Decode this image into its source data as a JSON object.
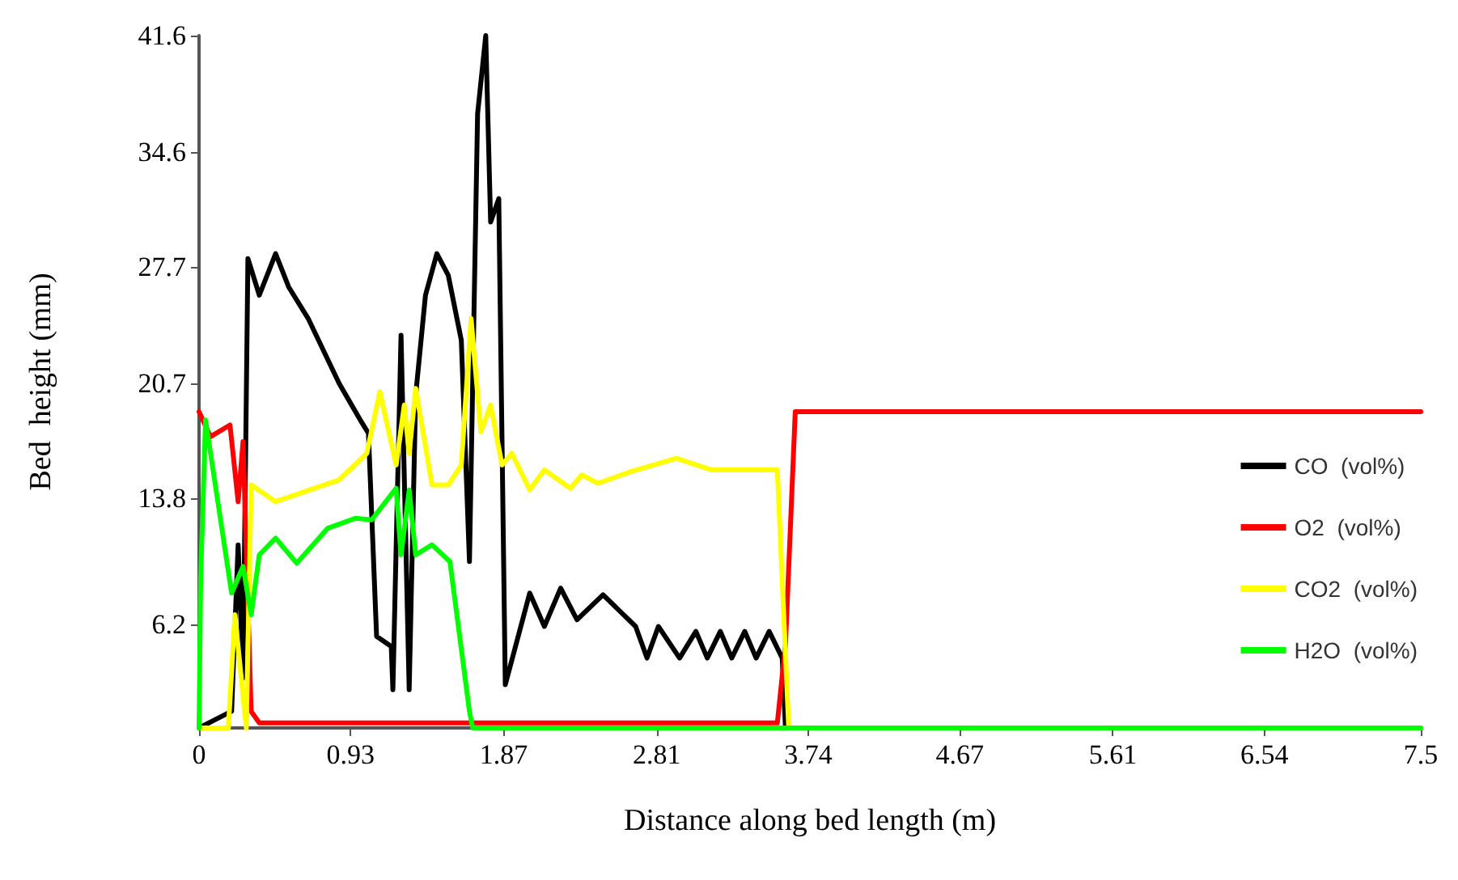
{
  "chart_data": {
    "type": "line",
    "xlabel": "Distance along bed length (m)",
    "ylabel": "Bed  height (mm)",
    "xlim": [
      0,
      7.5
    ],
    "xticks": [
      0,
      0.93,
      1.87,
      2.81,
      3.74,
      4.67,
      5.61,
      6.54,
      7.5
    ],
    "ylim": [
      0,
      41.6
    ],
    "yticks": [
      6.2,
      13.8,
      20.7,
      27.7,
      34.6,
      41.6
    ],
    "grid": false,
    "legend": "right",
    "marker": "none",
    "line_style": "solid",
    "series": [
      {
        "name": "CO  (vol%)",
        "color": "#000000",
        "x": [
          0,
          0.2,
          0.24,
          0.27,
          0.3,
          0.37,
          0.47,
          0.55,
          0.67,
          0.86,
          0.99,
          1.04,
          1.09,
          1.18,
          1.19,
          1.24,
          1.29,
          1.33,
          1.39,
          1.46,
          1.53,
          1.61,
          1.66,
          1.71,
          1.76,
          1.79,
          1.84,
          1.88,
          2.03,
          2.12,
          2.22,
          2.32,
          2.48,
          2.68,
          2.75,
          2.82,
          2.95,
          3.05,
          3.12,
          3.2,
          3.27,
          3.35,
          3.42,
          3.5,
          3.58,
          3.6
        ],
        "values": [
          0,
          1,
          11,
          3,
          28.2,
          26,
          28.5,
          26.5,
          24.6,
          20.7,
          18.5,
          17.7,
          5.5,
          4.9,
          2.3,
          23.6,
          2.3,
          20,
          26,
          28.5,
          27.2,
          23.3,
          10,
          36.9,
          41.6,
          30.4,
          31.8,
          2.6,
          8.1,
          6.1,
          8.4,
          6.5,
          8,
          6.1,
          4.2,
          6.1,
          4.2,
          5.8,
          4.2,
          5.8,
          4.2,
          5.8,
          4.2,
          5.8,
          4.2,
          0
        ]
      },
      {
        "name": "O2  (vol%)",
        "color": "#ff0000",
        "x": [
          0,
          0.07,
          0.19,
          0.24,
          0.27,
          0.32,
          0.37,
          1.66,
          3.55,
          3.6,
          3.66,
          7.5
        ],
        "values": [
          19,
          17.5,
          18.2,
          13.6,
          17.2,
          1,
          0.3,
          0.3,
          0.3,
          5,
          19,
          19
        ]
      },
      {
        "name": "CO2  (vol%)",
        "color": "#ffff00",
        "x": [
          0,
          0.18,
          0.22,
          0.29,
          0.32,
          0.47,
          0.86,
          1.03,
          1.11,
          1.21,
          1.26,
          1.29,
          1.33,
          1.43,
          1.53,
          1.61,
          1.67,
          1.73,
          1.79,
          1.86,
          1.92,
          2.03,
          2.12,
          2.28,
          2.35,
          2.45,
          2.65,
          2.93,
          3.15,
          3.35,
          3.55,
          3.62,
          7.5
        ],
        "values": [
          0,
          0,
          6.8,
          0,
          14.6,
          13.6,
          14.9,
          16.5,
          20.2,
          15.8,
          19.4,
          16.5,
          20.4,
          14.6,
          14.6,
          15.8,
          24.6,
          17.8,
          19.4,
          15.8,
          16.5,
          14.3,
          15.5,
          14.4,
          15.2,
          14.7,
          15.4,
          16.2,
          15.5,
          15.5,
          15.5,
          0,
          0
        ]
      },
      {
        "name": "H2O  (vol%)",
        "color": "#00ff00",
        "x": [
          0,
          0.01,
          0.04,
          0.2,
          0.27,
          0.32,
          0.37,
          0.47,
          0.6,
          0.79,
          0.96,
          1.06,
          1.21,
          1.24,
          1.29,
          1.33,
          1.43,
          1.54,
          1.66,
          1.68,
          7.5
        ],
        "values": [
          0,
          9,
          18.5,
          8.1,
          9.7,
          6.8,
          10.4,
          11.4,
          9.9,
          12,
          12.6,
          12.5,
          14.4,
          10.4,
          14.3,
          10.4,
          11,
          10,
          1,
          0,
          0
        ]
      }
    ]
  }
}
